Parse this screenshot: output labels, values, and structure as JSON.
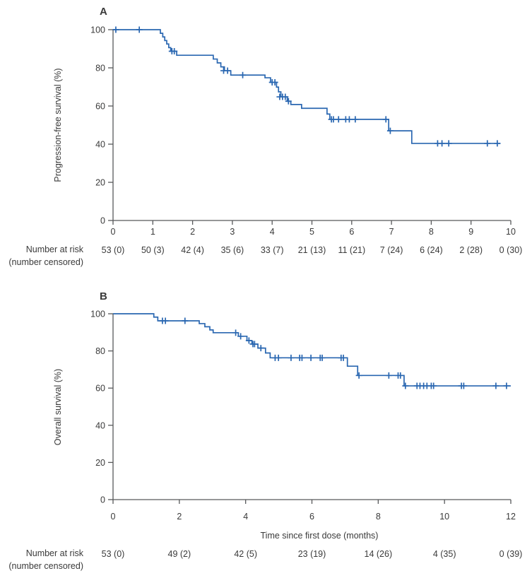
{
  "figure": {
    "labels": {
      "number_at_risk": "Number at risk",
      "number_censored": "(number censored)"
    },
    "colors": {
      "curve": "#2a67b1",
      "axis": "#58595b",
      "text": "#3a3a3a"
    }
  },
  "chart_data": [
    {
      "type": "line",
      "subtype": "kaplan-meier-step",
      "panel": "A",
      "title": "",
      "xlabel": "",
      "ylabel": "Progression-free survival (%)",
      "xlim": [
        0,
        10
      ],
      "ylim": [
        0,
        100
      ],
      "xticks": [
        0,
        1,
        2,
        3,
        4,
        5,
        6,
        7,
        8,
        9,
        10
      ],
      "yticks": [
        0,
        20,
        40,
        60,
        80,
        100
      ],
      "grid": false,
      "legend": "none",
      "curve_start": [
        0,
        100
      ],
      "curve_end_time": 9.74,
      "steps": [
        [
          1.19,
          98.1
        ],
        [
          1.25,
          96.2
        ],
        [
          1.3,
          94.3
        ],
        [
          1.35,
          92.5
        ],
        [
          1.4,
          90.6
        ],
        [
          1.45,
          88.7
        ],
        [
          1.6,
          86.6
        ],
        [
          2.52,
          84.6
        ],
        [
          2.62,
          82.6
        ],
        [
          2.71,
          80.5
        ],
        [
          2.8,
          78.5
        ],
        [
          2.96,
          76.2
        ],
        [
          3.82,
          74.8
        ],
        [
          3.96,
          72.4
        ],
        [
          4.11,
          69.9
        ],
        [
          4.16,
          67.4
        ],
        [
          4.22,
          64.8
        ],
        [
          4.38,
          62.5
        ],
        [
          4.47,
          60.8
        ],
        [
          4.74,
          58.8
        ],
        [
          5.38,
          55.8
        ],
        [
          5.45,
          53.0
        ],
        [
          6.93,
          47.0
        ],
        [
          7.51,
          40.4
        ]
      ],
      "censors": [
        [
          0.07,
          100
        ],
        [
          0.66,
          100
        ],
        [
          1.48,
          88.7
        ],
        [
          1.54,
          88.7
        ],
        [
          2.78,
          78.5
        ],
        [
          2.88,
          78.5
        ],
        [
          3.26,
          76.2
        ],
        [
          4.0,
          72.4
        ],
        [
          4.07,
          72.4
        ],
        [
          4.19,
          64.8
        ],
        [
          4.26,
          64.8
        ],
        [
          4.33,
          64.8
        ],
        [
          4.41,
          62.5
        ],
        [
          5.49,
          53.0
        ],
        [
          5.54,
          53.0
        ],
        [
          5.67,
          53.0
        ],
        [
          5.85,
          53.0
        ],
        [
          5.94,
          53.0
        ],
        [
          6.09,
          53.0
        ],
        [
          6.86,
          53.0
        ],
        [
          6.97,
          47.0
        ],
        [
          8.16,
          40.4
        ],
        [
          8.27,
          40.4
        ],
        [
          8.44,
          40.4
        ],
        [
          9.41,
          40.4
        ],
        [
          9.66,
          40.4
        ]
      ],
      "number_at_risk": {
        "times": [
          0,
          1,
          2,
          3,
          4,
          5,
          6,
          7,
          8,
          9,
          10
        ],
        "values": [
          "53 (0)",
          "50 (3)",
          "42 (4)",
          "35 (6)",
          "33 (7)",
          "21 (13)",
          "11 (21)",
          "7 (24)",
          "6 (24)",
          "2 (28)",
          "0 (30)"
        ]
      }
    },
    {
      "type": "line",
      "subtype": "kaplan-meier-step",
      "panel": "B",
      "title": "",
      "xlabel": "Time since first dose (months)",
      "ylabel": "Overall survival (%)",
      "xlim": [
        0,
        12
      ],
      "ylim": [
        0,
        100
      ],
      "xticks": [
        0,
        2,
        4,
        6,
        8,
        10,
        12
      ],
      "yticks": [
        0,
        20,
        40,
        60,
        80,
        100
      ],
      "grid": false,
      "legend": "none",
      "curve_start": [
        0,
        100
      ],
      "curve_end_time": 12.0,
      "steps": [
        [
          1.23,
          98.2
        ],
        [
          1.35,
          96.2
        ],
        [
          2.6,
          94.7
        ],
        [
          2.77,
          93.0
        ],
        [
          2.92,
          91.3
        ],
        [
          3.02,
          89.8
        ],
        [
          3.78,
          87.9
        ],
        [
          4.04,
          85.6
        ],
        [
          4.19,
          83.7
        ],
        [
          4.37,
          81.5
        ],
        [
          4.6,
          78.9
        ],
        [
          4.74,
          76.3
        ],
        [
          7.07,
          71.8
        ],
        [
          7.38,
          66.8
        ],
        [
          8.78,
          61.2
        ]
      ],
      "censors": [
        [
          1.49,
          96.2
        ],
        [
          1.58,
          96.2
        ],
        [
          2.17,
          96.2
        ],
        [
          3.7,
          89.8
        ],
        [
          3.85,
          87.9
        ],
        [
          4.1,
          85.6
        ],
        [
          4.22,
          83.7
        ],
        [
          4.27,
          83.7
        ],
        [
          4.46,
          81.5
        ],
        [
          4.89,
          76.3
        ],
        [
          4.99,
          76.3
        ],
        [
          5.37,
          76.3
        ],
        [
          5.63,
          76.3
        ],
        [
          5.7,
          76.3
        ],
        [
          5.97,
          76.3
        ],
        [
          6.25,
          76.3
        ],
        [
          6.31,
          76.3
        ],
        [
          6.88,
          76.3
        ],
        [
          6.95,
          76.3
        ],
        [
          7.42,
          66.8
        ],
        [
          8.32,
          66.8
        ],
        [
          8.6,
          66.8
        ],
        [
          8.67,
          66.8
        ],
        [
          8.82,
          61.2
        ],
        [
          9.17,
          61.2
        ],
        [
          9.26,
          61.2
        ],
        [
          9.37,
          61.2
        ],
        [
          9.47,
          61.2
        ],
        [
          9.6,
          61.2
        ],
        [
          9.67,
          61.2
        ],
        [
          10.51,
          61.2
        ],
        [
          10.58,
          61.2
        ],
        [
          11.55,
          61.2
        ],
        [
          11.87,
          61.2
        ]
      ],
      "number_at_risk": {
        "times": [
          0,
          2,
          4,
          6,
          8,
          10,
          12
        ],
        "values": [
          "53 (0)",
          "49 (2)",
          "42 (5)",
          "23 (19)",
          "14 (26)",
          "4 (35)",
          "0 (39)"
        ]
      }
    }
  ]
}
